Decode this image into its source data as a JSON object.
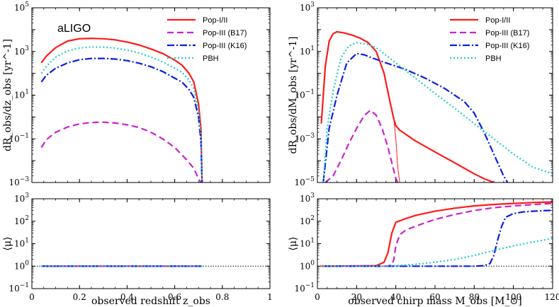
{
  "colors": {
    "pop12": "#ff1a1a",
    "pop3b17": "#cc22cc",
    "pop3k16": "#0a1ee6",
    "pbh": "#22cccc",
    "refline": "#000000"
  },
  "legend": [
    {
      "label": "Pop-I/II",
      "color": "#ff1a1a",
      "dash": "solid"
    },
    {
      "label": "Pop-III (B17)",
      "color": "#cc22cc",
      "dash": "dashed"
    },
    {
      "label": "Pop-III (K16)",
      "color": "#0a1ee6",
      "dash": "dashdot"
    },
    {
      "label": "PBH",
      "color": "#22cccc",
      "dash": "dotted"
    }
  ],
  "chart_data": [
    {
      "id": "top-left",
      "type": "line",
      "annotation": "aLIGO",
      "xlabel": "",
      "ylabel": "dR_obs/dz_obs [yr^-1]",
      "xlim": [
        0,
        1
      ],
      "ylim_log10": [
        -3,
        5
      ],
      "xscale": "linear",
      "yscale": "log",
      "xticks": [
        "",
        "",
        "",
        "",
        "",
        ""
      ],
      "yticks": [
        {
          "exp": "−3",
          "v": -3
        },
        {
          "exp": "−1",
          "v": -1
        },
        {
          "exp": "1",
          "v": 1
        },
        {
          "exp": "3",
          "v": 3
        },
        {
          "exp": "5",
          "v": 5
        }
      ],
      "series": [
        {
          "name": "Pop-I/II",
          "key": "pop12",
          "x": [
            0.04,
            0.06,
            0.1,
            0.15,
            0.2,
            0.25,
            0.3,
            0.35,
            0.4,
            0.45,
            0.5,
            0.55,
            0.6,
            0.63,
            0.66,
            0.68,
            0.7,
            0.71,
            0.715
          ],
          "y": [
            300,
            600,
            1500,
            3000,
            3800,
            4000,
            3800,
            3400,
            2700,
            2000,
            1300,
            800,
            400,
            240,
            100,
            40,
            4,
            0.3,
            0.001
          ]
        },
        {
          "name": "Pop-III (B17)",
          "key": "pop3b17",
          "x": [
            0.04,
            0.06,
            0.1,
            0.15,
            0.2,
            0.25,
            0.3,
            0.35,
            0.4,
            0.45,
            0.5,
            0.55,
            0.6,
            0.65,
            0.68,
            0.7,
            0.71
          ],
          "y": [
            0.04,
            0.09,
            0.2,
            0.35,
            0.48,
            0.56,
            0.58,
            0.53,
            0.44,
            0.33,
            0.2,
            0.1,
            0.04,
            0.011,
            0.0045,
            0.0015,
            0.001
          ]
        },
        {
          "name": "Pop-III (K16)",
          "key": "pop3k16",
          "x": [
            0.04,
            0.06,
            0.1,
            0.15,
            0.2,
            0.25,
            0.3,
            0.35,
            0.4,
            0.45,
            0.5,
            0.55,
            0.6,
            0.63,
            0.66,
            0.68,
            0.7,
            0.71,
            0.715
          ],
          "y": [
            40,
            80,
            170,
            300,
            420,
            480,
            480,
            450,
            380,
            290,
            200,
            120,
            60,
            40,
            18,
            8,
            1,
            0.08,
            0.001
          ]
        },
        {
          "name": "PBH",
          "key": "pbh",
          "x": [
            0.04,
            0.06,
            0.1,
            0.15,
            0.2,
            0.25,
            0.3,
            0.35,
            0.4,
            0.45,
            0.5,
            0.55,
            0.6,
            0.63,
            0.66,
            0.68,
            0.7,
            0.71,
            0.715
          ],
          "y": [
            100,
            200,
            550,
            1050,
            1450,
            1600,
            1580,
            1420,
            1150,
            850,
            560,
            330,
            170,
            110,
            50,
            20,
            2,
            0.15,
            0.001
          ]
        }
      ]
    },
    {
      "id": "top-right",
      "type": "line",
      "xlabel": "",
      "ylabel": "dR_obs/dM_obs [yr^-1]",
      "xlim": [
        0,
        120
      ],
      "ylim_log10": [
        -5,
        3
      ],
      "xscale": "linear",
      "yscale": "log",
      "xticks": [
        "",
        "",
        "",
        "",
        "",
        "",
        ""
      ],
      "yticks": [
        {
          "exp": "−5",
          "v": -5
        },
        {
          "exp": "−3",
          "v": -3
        },
        {
          "exp": "−1",
          "v": -1
        },
        {
          "exp": "1",
          "v": 1
        },
        {
          "exp": "3",
          "v": 3
        }
      ],
      "series": [
        {
          "name": "Pop-I/II",
          "key": "pop12",
          "x": [
            2,
            4,
            6,
            8,
            10,
            14,
            18,
            22,
            26,
            30,
            34,
            37,
            39,
            40,
            42,
            50,
            60,
            70,
            80,
            85,
            90
          ],
          "y": [
            0.005,
            2,
            30,
            65,
            80,
            70,
            55,
            40,
            25,
            10,
            1,
            0.05,
            0.008,
            0.004,
            0.0025,
            0.0008,
            0.00025,
            8e-05,
            2.5e-05,
            1.5e-05,
            1e-05
          ]
        },
        {
          "name": "Pop-I/II (thin tail)",
          "key": "pop12",
          "thin": true,
          "x": [
            39,
            40,
            41,
            42
          ],
          "y": [
            0.008,
            0.001,
            5e-05,
            1e-05
          ]
        },
        {
          "name": "Pop-III (B17)",
          "key": "pop3b17",
          "x": [
            4,
            8,
            12,
            16,
            20,
            24,
            27,
            30,
            33,
            36,
            38,
            40,
            41
          ],
          "y": [
            1e-05,
            2e-05,
            0.0001,
            0.0006,
            0.003,
            0.012,
            0.02,
            0.012,
            0.003,
            0.0004,
            8e-05,
            1.5e-05,
            1e-05
          ]
        },
        {
          "name": "Pop-III (K16)",
          "key": "pop3k16",
          "x": [
            3,
            6,
            10,
            15,
            20,
            24,
            28,
            35,
            45,
            55,
            65,
            75,
            80,
            85,
            90,
            93,
            95,
            97
          ],
          "y": [
            1e-05,
            0.003,
            0.1,
            3,
            8,
            7,
            5,
            3,
            1.5,
            0.6,
            0.2,
            0.05,
            0.015,
            0.002,
            0.0002,
            5e-05,
            2e-05,
            1e-05
          ]
        },
        {
          "name": "PBH",
          "key": "pbh",
          "x": [
            3,
            5,
            8,
            12,
            16,
            20,
            25,
            30,
            40,
            50,
            60,
            70,
            80,
            90,
            100,
            110,
            120
          ],
          "y": [
            1e-05,
            0.003,
            0.15,
            5,
            18,
            25,
            22,
            15,
            3,
            0.6,
            0.12,
            0.025,
            0.005,
            0.001,
            0.0002,
            5e-05,
            2.5e-05
          ]
        }
      ]
    },
    {
      "id": "bottom-left",
      "type": "line",
      "xlabel": "observed redshift z_obs",
      "ylabel": "⟨μ⟩",
      "xlim": [
        0,
        1
      ],
      "ylim_log10": [
        -1,
        3
      ],
      "xscale": "linear",
      "yscale": "log",
      "xticks": [
        "0",
        "0.2",
        "0.4",
        "0.6",
        "0.8",
        "1"
      ],
      "yticks": [
        {
          "exp": "−1",
          "v": -1
        },
        {
          "exp": "0",
          "v": 0
        },
        {
          "exp": "1",
          "v": 1
        },
        {
          "exp": "2",
          "v": 2
        },
        {
          "exp": "3",
          "v": 3
        }
      ],
      "reference_line": 1,
      "series": [
        {
          "name": "Pop-I/II",
          "key": "pop12",
          "x": [
            0.04,
            0.715
          ],
          "y": [
            1,
            1
          ]
        },
        {
          "name": "Pop-III (B17)",
          "key": "pop3b17",
          "x": [
            0.04,
            0.715
          ],
          "y": [
            1,
            1
          ]
        },
        {
          "name": "Pop-III (K16)",
          "key": "pop3k16",
          "x": [
            0.04,
            0.715
          ],
          "y": [
            1,
            1
          ]
        },
        {
          "name": "PBH",
          "key": "pbh",
          "x": [
            0.04,
            0.715
          ],
          "y": [
            1,
            1
          ]
        }
      ]
    },
    {
      "id": "bottom-right",
      "type": "line",
      "xlabel": "observed chirp mass M_obs [M_⊙]",
      "ylabel": "⟨μ⟩",
      "xlim": [
        0,
        120
      ],
      "ylim_log10": [
        -1,
        3
      ],
      "xscale": "linear",
      "yscale": "log",
      "xticks": [
        "0",
        "20",
        "40",
        "60",
        "80",
        "100",
        "120"
      ],
      "yticks": [
        {
          "exp": "−1",
          "v": -1
        },
        {
          "exp": "0",
          "v": 0
        },
        {
          "exp": "1",
          "v": 1
        },
        {
          "exp": "2",
          "v": 2
        },
        {
          "exp": "3",
          "v": 3
        }
      ],
      "reference_line": 1,
      "series": [
        {
          "name": "Pop-I/II",
          "key": "pop12",
          "x": [
            2,
            30,
            34,
            36,
            38,
            40,
            45,
            50,
            60,
            70,
            80,
            90,
            100,
            110,
            120
          ],
          "y": [
            1,
            1.05,
            1.5,
            4,
            30,
            90,
            130,
            180,
            280,
            380,
            480,
            560,
            620,
            680,
            720
          ]
        },
        {
          "name": "Pop-III (B17)",
          "key": "pop3b17",
          "x": [
            4,
            35,
            38,
            39,
            40,
            42,
            45,
            50,
            60,
            70,
            80,
            90,
            100,
            110,
            120
          ],
          "y": [
            1,
            1,
            1.1,
            2,
            8,
            25,
            40,
            60,
            120,
            200,
            300,
            400,
            480,
            550,
            620
          ]
        },
        {
          "name": "Pop-III (K16)",
          "key": "pop3k16",
          "x": [
            3,
            80,
            85,
            88,
            90,
            92,
            94,
            96,
            100,
            105,
            110,
            115,
            120
          ],
          "y": [
            1,
            1,
            1.05,
            1.3,
            3,
            15,
            60,
            150,
            220,
            260,
            280,
            295,
            305
          ]
        },
        {
          "name": "PBH",
          "key": "pbh",
          "x": [
            3,
            30,
            40,
            50,
            60,
            70,
            80,
            90,
            100,
            110,
            120
          ],
          "y": [
            1,
            1,
            1.05,
            1.2,
            1.5,
            2,
            3,
            5,
            8,
            12,
            17
          ]
        }
      ]
    }
  ]
}
